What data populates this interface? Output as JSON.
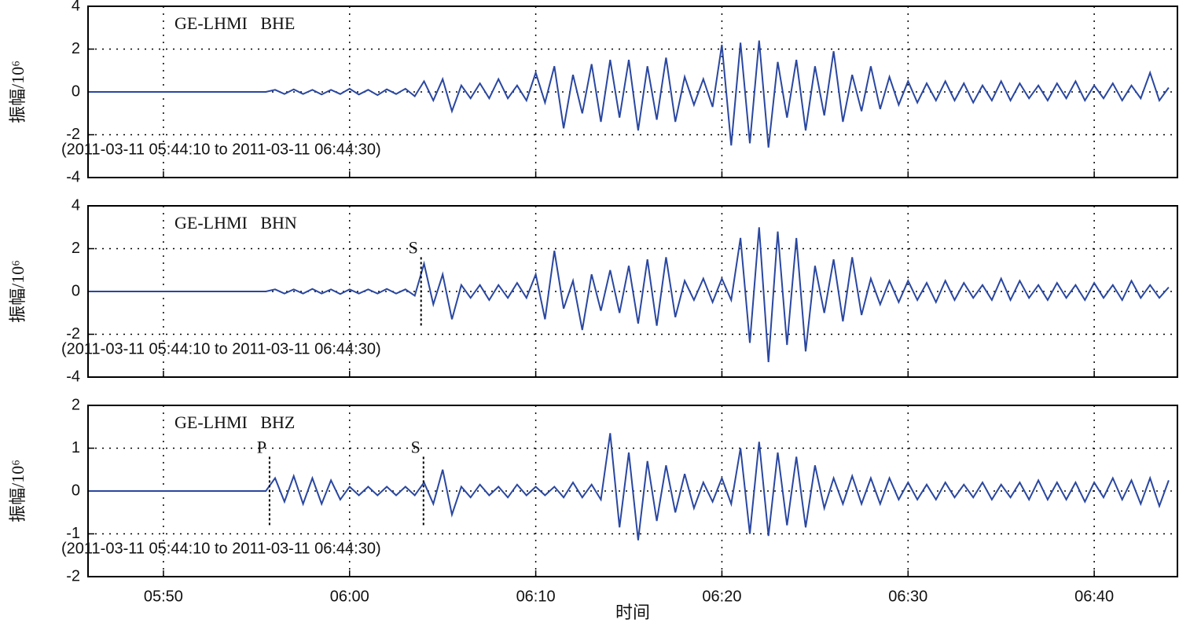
{
  "chart_data": [
    {
      "type": "line",
      "title": "GE-LHMI   BHE",
      "subtitle": "(2011-03-11 05:44:10 to 2011-03-11 06:44:30)",
      "y_label": "振幅/10⁶",
      "xlim": [
        345.95,
        404.47
      ],
      "xticks": [
        350,
        360,
        370,
        380,
        390,
        400
      ],
      "ylim": [
        -4,
        4
      ],
      "yticks": [
        -4,
        -2,
        0,
        2,
        4
      ],
      "grid": true,
      "color": "#2a47a0",
      "markers": [],
      "x": [
        345.95,
        355.5,
        356,
        356.5,
        357,
        357.5,
        358,
        358.5,
        359,
        359.5,
        360,
        360.5,
        361,
        361.5,
        362,
        362.5,
        363,
        363.5,
        364,
        364.5,
        365,
        365.5,
        366,
        366.5,
        367,
        367.5,
        368,
        368.5,
        369,
        369.5,
        370,
        370.5,
        371,
        371.5,
        372,
        372.5,
        373,
        373.5,
        374,
        374.5,
        375,
        375.5,
        376,
        376.5,
        377,
        377.5,
        378,
        378.5,
        379,
        379.5,
        380,
        380.5,
        381,
        381.5,
        382,
        382.5,
        383,
        383.5,
        384,
        384.5,
        385,
        385.5,
        386,
        386.5,
        387,
        387.5,
        388,
        388.5,
        389,
        389.5,
        390,
        390.5,
        391,
        391.5,
        392,
        392.5,
        393,
        393.5,
        394,
        394.5,
        395,
        395.5,
        396,
        396.5,
        397,
        397.5,
        398,
        398.5,
        399,
        399.5,
        400,
        400.5,
        401,
        401.5,
        402,
        402.5,
        403,
        403.5,
        404
      ],
      "values": [
        0,
        0,
        0.1,
        -0.1,
        0.12,
        -0.1,
        0.1,
        -0.12,
        0.1,
        -0.1,
        0.15,
        -0.12,
        0.1,
        -0.15,
        0.12,
        -0.1,
        0.15,
        -0.2,
        0.5,
        -0.4,
        0.6,
        -0.9,
        0.3,
        -0.3,
        0.4,
        -0.3,
        0.6,
        -0.3,
        0.3,
        -0.4,
        0.9,
        -0.5,
        1.2,
        -1.7,
        0.8,
        -1.0,
        1.3,
        -1.4,
        1.5,
        -1.2,
        1.5,
        -1.8,
        1.2,
        -1.3,
        1.6,
        -1.4,
        0.7,
        -0.6,
        0.6,
        -0.7,
        2.2,
        -2.5,
        2.3,
        -2.4,
        2.4,
        -2.6,
        1.4,
        -1.2,
        1.5,
        -1.8,
        1.2,
        -1.1,
        1.9,
        -1.4,
        0.8,
        -0.9,
        1.2,
        -0.8,
        0.7,
        -0.6,
        0.5,
        -0.5,
        0.4,
        -0.4,
        0.5,
        -0.4,
        0.4,
        -0.5,
        0.3,
        -0.4,
        0.5,
        -0.4,
        0.4,
        -0.3,
        0.3,
        -0.4,
        0.4,
        -0.3,
        0.5,
        -0.4,
        0.3,
        -0.3,
        0.4,
        -0.4,
        0.3,
        -0.3,
        0.9,
        -0.4,
        0.2
      ]
    },
    {
      "type": "line",
      "title": "GE-LHMI   BHN",
      "subtitle": "(2011-03-11 05:44:10 to 2011-03-11 06:44:30)",
      "y_label": "振幅/10⁶",
      "xlim": [
        345.95,
        404.47
      ],
      "xticks": [
        350,
        360,
        370,
        380,
        390,
        400
      ],
      "ylim": [
        -4,
        4
      ],
      "yticks": [
        -4,
        -2,
        0,
        2,
        4
      ],
      "grid": true,
      "color": "#2a47a0",
      "markers": [
        {
          "label": "S",
          "x": 363.84
        }
      ],
      "x": [
        345.95,
        355.5,
        356,
        356.5,
        357,
        357.5,
        358,
        358.5,
        359,
        359.5,
        360,
        360.5,
        361,
        361.5,
        362,
        362.5,
        363,
        363.5,
        364,
        364.5,
        365,
        365.5,
        366,
        366.5,
        367,
        367.5,
        368,
        368.5,
        369,
        369.5,
        370,
        370.5,
        371,
        371.5,
        372,
        372.5,
        373,
        373.5,
        374,
        374.5,
        375,
        375.5,
        376,
        376.5,
        377,
        377.5,
        378,
        378.5,
        379,
        379.5,
        380,
        380.5,
        381,
        381.5,
        382,
        382.5,
        383,
        383.5,
        384,
        384.5,
        385,
        385.5,
        386,
        386.5,
        387,
        387.5,
        388,
        388.5,
        389,
        389.5,
        390,
        390.5,
        391,
        391.5,
        392,
        392.5,
        393,
        393.5,
        394,
        394.5,
        395,
        395.5,
        396,
        396.5,
        397,
        397.5,
        398,
        398.5,
        399,
        399.5,
        400,
        400.5,
        401,
        401.5,
        402,
        402.5,
        403,
        403.5,
        404
      ],
      "values": [
        0,
        0,
        0.1,
        -0.1,
        0.1,
        -0.1,
        0.12,
        -0.1,
        0.1,
        -0.12,
        0.1,
        -0.1,
        0.1,
        -0.1,
        0.12,
        -0.1,
        0.1,
        -0.2,
        1.3,
        -0.6,
        0.8,
        -1.3,
        0.3,
        -0.3,
        0.3,
        -0.4,
        0.3,
        -0.3,
        0.4,
        -0.3,
        0.8,
        -1.3,
        1.9,
        -0.8,
        0.5,
        -1.8,
        0.8,
        -0.9,
        1.0,
        -1.0,
        1.2,
        -1.5,
        1.5,
        -1.6,
        1.6,
        -1.2,
        0.5,
        -0.4,
        0.6,
        -0.5,
        0.6,
        -0.4,
        2.5,
        -2.4,
        3.0,
        -3.3,
        2.8,
        -2.5,
        2.5,
        -2.8,
        1.2,
        -1.0,
        1.5,
        -1.4,
        1.6,
        -1.1,
        0.6,
        -0.6,
        0.5,
        -0.5,
        0.5,
        -0.4,
        0.4,
        -0.5,
        0.5,
        -0.4,
        0.4,
        -0.3,
        0.3,
        -0.4,
        0.6,
        -0.4,
        0.5,
        -0.3,
        0.3,
        -0.4,
        0.4,
        -0.3,
        0.3,
        -0.4,
        0.4,
        -0.3,
        0.3,
        -0.4,
        0.5,
        -0.3,
        0.3,
        -0.3,
        0.2
      ]
    },
    {
      "type": "line",
      "title": "GE-LHMI   BHZ",
      "subtitle": "(2011-03-11 05:44:10 to 2011-03-11 06:44:30)",
      "y_label": "振幅/10⁶",
      "x_label": "时间",
      "xlim": [
        345.95,
        404.47
      ],
      "xticks": [
        {
          "value": 350,
          "label": "05:50"
        },
        {
          "value": 360,
          "label": "06:00"
        },
        {
          "value": 370,
          "label": "06:10"
        },
        {
          "value": 380,
          "label": "06:20"
        },
        {
          "value": 390,
          "label": "06:30"
        },
        {
          "value": 400,
          "label": "06:40"
        }
      ],
      "ylim": [
        -2,
        2
      ],
      "yticks": [
        -2,
        -1,
        0,
        1,
        2
      ],
      "grid": true,
      "color": "#2a47a0",
      "markers": [
        {
          "label": "P",
          "x": 355.7
        },
        {
          "label": "S",
          "x": 363.97
        }
      ],
      "x": [
        345.95,
        355.5,
        356,
        356.5,
        357,
        357.5,
        358,
        358.5,
        359,
        359.5,
        360,
        360.5,
        361,
        361.5,
        362,
        362.5,
        363,
        363.5,
        364,
        364.5,
        365,
        365.5,
        366,
        366.5,
        367,
        367.5,
        368,
        368.5,
        369,
        369.5,
        370,
        370.5,
        371,
        371.5,
        372,
        372.5,
        373,
        373.5,
        374,
        374.5,
        375,
        375.5,
        376,
        376.5,
        377,
        377.5,
        378,
        378.5,
        379,
        379.5,
        380,
        380.5,
        381,
        381.5,
        382,
        382.5,
        383,
        383.5,
        384,
        384.5,
        385,
        385.5,
        386,
        386.5,
        387,
        387.5,
        388,
        388.5,
        389,
        389.5,
        390,
        390.5,
        391,
        391.5,
        392,
        392.5,
        393,
        393.5,
        394,
        394.5,
        395,
        395.5,
        396,
        396.5,
        397,
        397.5,
        398,
        398.5,
        399,
        399.5,
        400,
        400.5,
        401,
        401.5,
        402,
        402.5,
        403,
        403.5,
        404
      ],
      "values": [
        0,
        0,
        0.3,
        -0.25,
        0.35,
        -0.3,
        0.3,
        -0.3,
        0.25,
        -0.2,
        0.1,
        -0.1,
        0.1,
        -0.1,
        0.1,
        -0.1,
        0.1,
        -0.1,
        0.2,
        -0.3,
        0.5,
        -0.55,
        0.1,
        -0.15,
        0.15,
        -0.1,
        0.1,
        -0.15,
        0.15,
        -0.1,
        0.1,
        -0.1,
        0.1,
        -0.15,
        0.2,
        -0.15,
        0.15,
        -0.2,
        1.35,
        -0.85,
        0.9,
        -1.15,
        0.7,
        -0.7,
        0.6,
        -0.5,
        0.4,
        -0.4,
        0.2,
        -0.25,
        0.3,
        -0.3,
        1.0,
        -1.0,
        1.15,
        -1.05,
        0.9,
        -0.8,
        0.8,
        -0.85,
        0.6,
        -0.4,
        0.3,
        -0.3,
        0.35,
        -0.3,
        0.3,
        -0.3,
        0.3,
        -0.2,
        0.2,
        -0.2,
        0.15,
        -0.2,
        0.2,
        -0.15,
        0.15,
        -0.15,
        0.2,
        -0.2,
        0.15,
        -0.15,
        0.2,
        -0.2,
        0.25,
        -0.2,
        0.2,
        -0.2,
        0.2,
        -0.25,
        0.2,
        -0.15,
        0.3,
        -0.2,
        0.25,
        -0.3,
        0.3,
        -0.35,
        0.25
      ]
    }
  ]
}
